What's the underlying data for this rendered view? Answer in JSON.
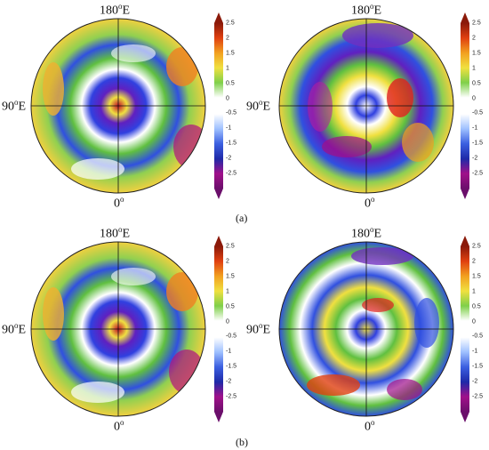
{
  "labels": {
    "top": "180",
    "top_unit": "o",
    "top_suffix": "E",
    "left": "90",
    "left_unit": "o",
    "left_suffix": "E",
    "bottom": "0",
    "bottom_unit": "o"
  },
  "figure_labels": [
    "(a)",
    "(b)"
  ],
  "colorbar": {
    "ticks": [
      "2.5",
      "2",
      "1.5",
      "1",
      "0.5",
      "0",
      "-0.5",
      "-1",
      "-1.5",
      "-2",
      "-2.5"
    ],
    "colors": [
      "#6b0f6b",
      "#a0108a",
      "#1f2aa8",
      "#3b5fe0",
      "#9ec0ff",
      "#ffffff",
      "#ffffff",
      "#7fd04a",
      "#f0e040",
      "#f2a020",
      "#e04010",
      "#8b1a0a"
    ]
  }
}
